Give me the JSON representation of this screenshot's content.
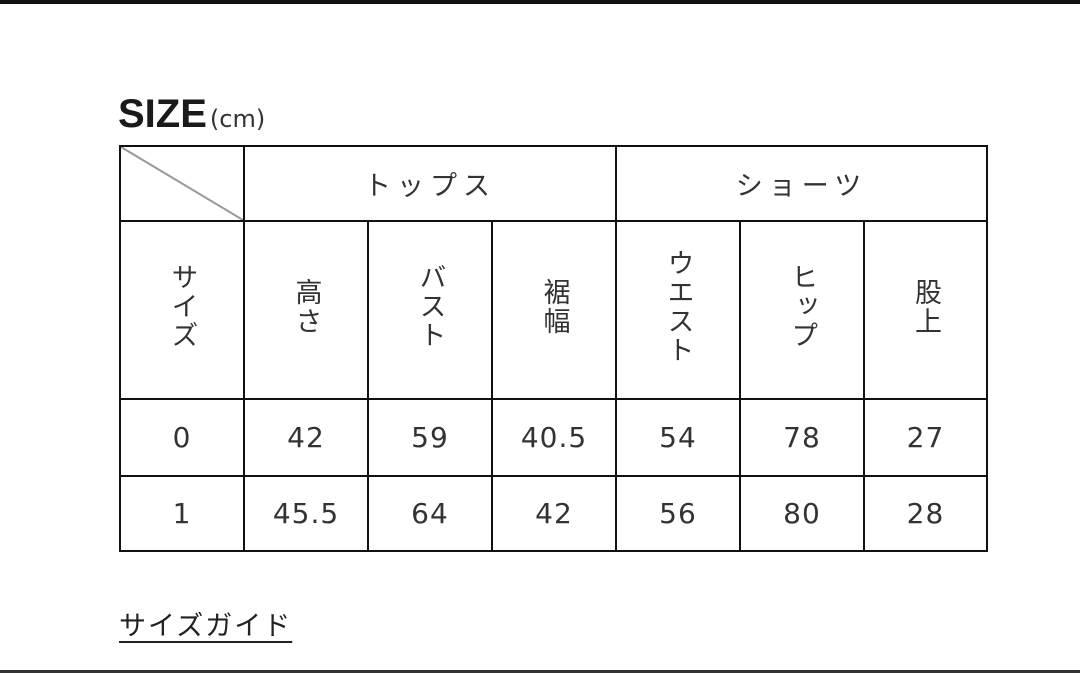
{
  "title": {
    "main": "SIZE",
    "unit": "(cm)"
  },
  "table": {
    "groups": {
      "tops": "トップス",
      "shorts": "ショーツ"
    },
    "size_header": "サイズ",
    "columns": [
      "高さ",
      "バスト",
      "裾幅",
      "ウエスト",
      "ヒップ",
      "股上"
    ],
    "rows": [
      {
        "size": "0",
        "values": [
          "42",
          "59",
          "40.5",
          "54",
          "78",
          "27"
        ]
      },
      {
        "size": "1",
        "values": [
          "45.5",
          "64",
          "42",
          "56",
          "80",
          "28"
        ]
      }
    ]
  },
  "size_guide_link": "サイズガイド"
}
